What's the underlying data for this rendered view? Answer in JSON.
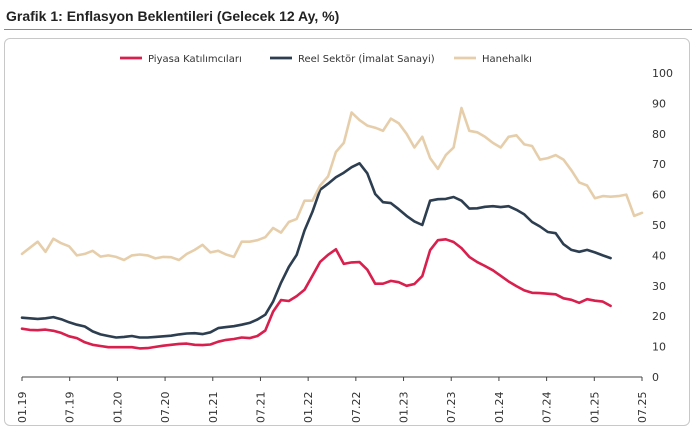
{
  "title": "Grafik 1: Enflasyon Beklentileri (Gelecek 12 Ay, %)",
  "chart_data": {
    "type": "line",
    "title": "Grafik 1: Enflasyon Beklentileri (Gelecek 12 Ay, %)",
    "ylim": [
      0,
      100
    ],
    "y_ticks": [
      "0",
      "10",
      "20",
      "30",
      "40",
      "50",
      "60",
      "70",
      "80",
      "90",
      "100"
    ],
    "x_ticks": [
      "01.19",
      "07.19",
      "01.20",
      "07.20",
      "01.21",
      "07.21",
      "01.22",
      "07.22",
      "01.23",
      "07.23",
      "01.24",
      "07.24",
      "01.25",
      "07.25"
    ],
    "grid": false,
    "legend_position": "top",
    "series": [
      {
        "name": "Piyasa Katılımcıları",
        "color": "#d81f4d",
        "values": [
          15.9,
          15.5,
          15.4,
          15.6,
          15.2,
          14.5,
          13.4,
          12.8,
          11.4,
          10.6,
          10.2,
          9.8,
          9.8,
          9.8,
          9.8,
          9.4,
          9.5,
          9.9,
          10.3,
          10.6,
          10.9,
          11.0,
          10.6,
          10.5,
          10.7,
          11.6,
          12.2,
          12.5,
          13.0,
          12.8,
          13.5,
          15.3,
          21.5,
          25.3,
          25.0,
          26.6,
          28.7,
          33.3,
          37.9,
          40.2,
          42.0,
          37.2,
          37.7,
          37.8,
          35.3,
          30.7,
          30.7,
          31.6,
          31.2,
          30.0,
          30.6,
          33.2,
          41.7,
          45.0,
          45.3,
          44.4,
          42.4,
          39.5,
          37.8,
          36.5,
          35.1,
          33.3,
          31.4,
          29.9,
          28.5,
          27.7,
          27.6,
          27.4,
          27.2,
          25.9,
          25.4,
          24.4,
          25.6,
          25.1,
          24.8,
          23.4
        ]
      },
      {
        "name": "Reel Sektör (İmalat Sanayi)",
        "color": "#2c3e50",
        "values": [
          19.5,
          19.3,
          19.1,
          19.3,
          19.7,
          19.0,
          18.0,
          17.2,
          16.6,
          15.0,
          14.0,
          13.5,
          13.0,
          13.2,
          13.5,
          13.0,
          13.0,
          13.2,
          13.4,
          13.6,
          14.0,
          14.3,
          14.4,
          14.1,
          14.7,
          16.1,
          16.4,
          16.7,
          17.2,
          17.8,
          18.9,
          20.5,
          24.8,
          31.0,
          36.2,
          40.2,
          48.2,
          54.3,
          61.6,
          63.6,
          65.7,
          67.2,
          69.0,
          70.3,
          67.0,
          60.2,
          57.5,
          57.2,
          55.2,
          53.0,
          51.2,
          50.0,
          58.0,
          58.5,
          58.6,
          59.2,
          58.0,
          55.4,
          55.5,
          56.0,
          56.2,
          55.9,
          56.2,
          55.0,
          53.5,
          51.0,
          49.5,
          47.7,
          47.3,
          43.7,
          41.8,
          41.2,
          41.8,
          41.0,
          40.0,
          39.1
        ]
      },
      {
        "name": "Hanehalkı",
        "color": "#e6ceab",
        "values": [
          40.5,
          42.5,
          44.5,
          41.2,
          45.5,
          44.0,
          43.0,
          40.0,
          40.5,
          41.5,
          39.6,
          40.0,
          39.5,
          38.5,
          40.0,
          40.3,
          40.0,
          39.0,
          39.5,
          39.4,
          38.5,
          40.5,
          41.8,
          43.5,
          41.0,
          41.5,
          40.3,
          39.5,
          44.5,
          44.5,
          45.0,
          46.0,
          49.0,
          47.5,
          51.0,
          52.0,
          58.0,
          58.0,
          63.0,
          66.0,
          74.0,
          77.0,
          87.0,
          84.5,
          82.7,
          82.0,
          81.0,
          85.0,
          83.5,
          80.0,
          75.5,
          79.0,
          72.0,
          68.5,
          73.0,
          75.5,
          88.5,
          81.0,
          80.5,
          79.0,
          77.0,
          75.5,
          79.0,
          79.5,
          76.5,
          76.0,
          71.5,
          72.0,
          73.0,
          71.5,
          68.0,
          64.0,
          63.0,
          58.8,
          59.5,
          59.3,
          59.5,
          60.0,
          53.0,
          54.0
        ]
      }
    ]
  }
}
